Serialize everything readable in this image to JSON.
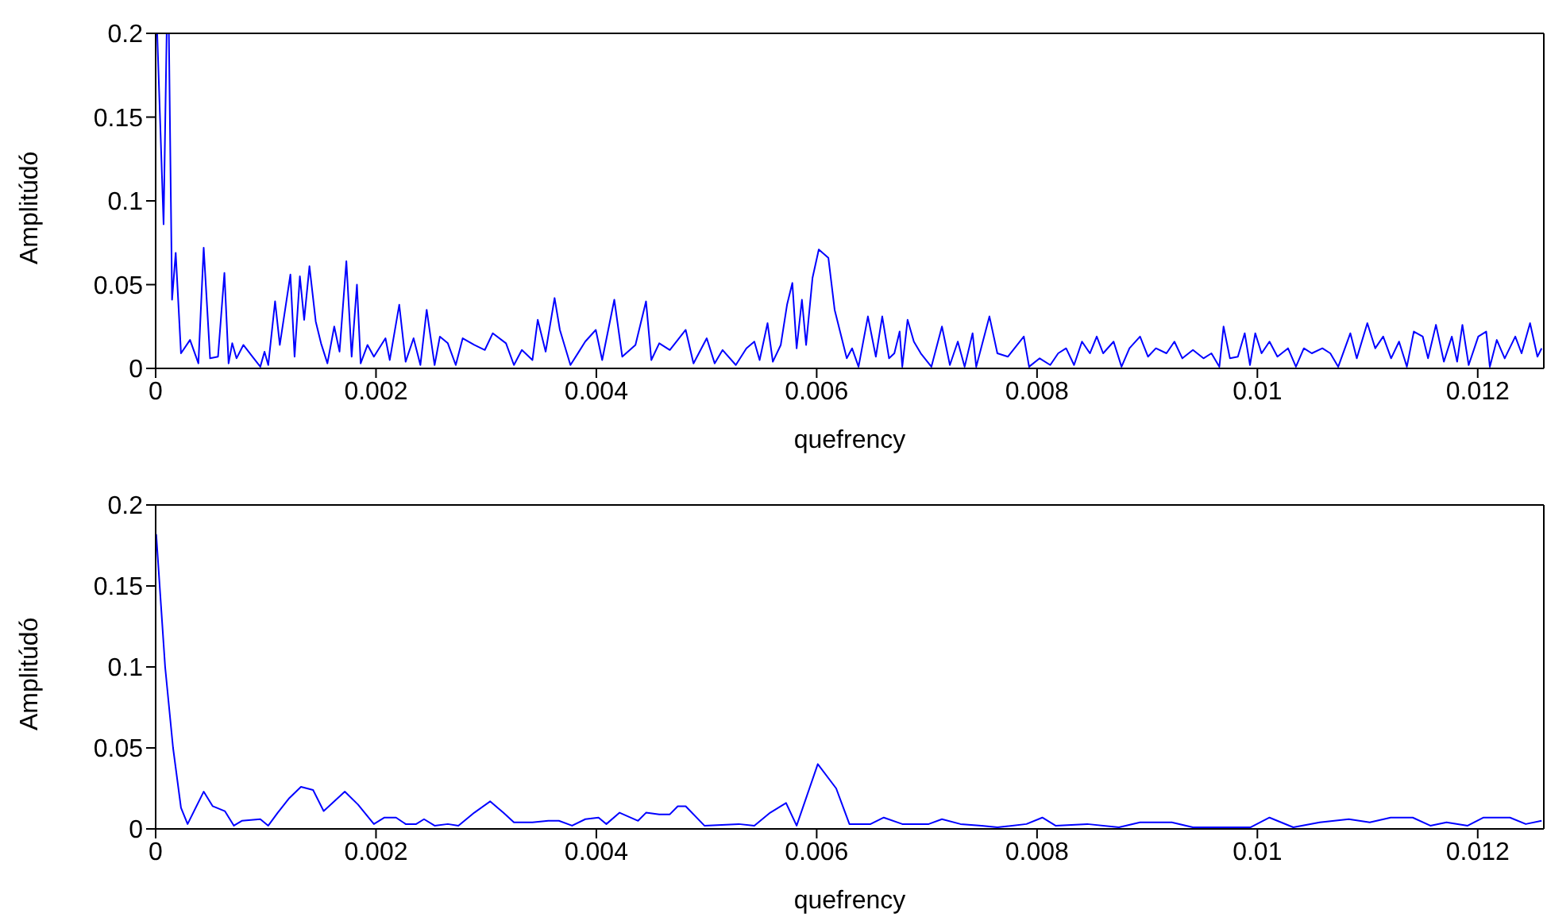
{
  "chart_data": [
    {
      "type": "line",
      "xlabel": "quefrency",
      "ylabel": "Amplitúdó",
      "xlim": [
        0,
        0.0126
      ],
      "xticks": [
        0,
        0.002,
        0.004,
        0.006,
        0.008,
        0.01,
        0.012
      ],
      "ylim": [
        0,
        0.2
      ],
      "yticks": [
        0,
        0.05,
        0.1,
        0.15,
        0.2
      ],
      "series": [
        {
          "color": "#0000ff",
          "x": [
            1.4e-05,
            7.2e-05,
            0.0001,
            0.00012,
            0.000149,
            0.000182,
            0.00023,
            0.000312,
            0.000388,
            0.000436,
            0.000494,
            0.000566,
            0.000624,
            0.000662,
            0.000695,
            0.000734,
            0.000796,
            0.000878,
            0.00095,
            0.000988,
            0.001022,
            0.001084,
            0.001127,
            0.001223,
            0.001261,
            0.001309,
            0.001348,
            0.001396,
            0.001453,
            0.001501,
            0.001559,
            0.001621,
            0.001669,
            0.001731,
            0.001779,
            0.001827,
            0.001861,
            0.001923,
            0.001981,
            0.002086,
            0.002125,
            0.002211,
            0.002269,
            0.002341,
            0.002403,
            0.00246,
            0.002532,
            0.00258,
            0.002652,
            0.002724,
            0.002787,
            0.002892,
            0.002988,
            0.00306,
            0.00318,
            0.003252,
            0.003324,
            0.00342,
            0.003468,
            0.00354,
            0.003621,
            0.003669,
            0.003765,
            0.003842,
            0.003899,
            0.003995,
            0.004053,
            0.004163,
            0.004235,
            0.004355,
            0.004451,
            0.004499,
            0.004571,
            0.004667,
            0.004811,
            0.004882,
            0.005002,
            0.005074,
            0.005146,
            0.005266,
            0.005362,
            0.005434,
            0.005482,
            0.005554,
            0.005602,
            0.005674,
            0.005731,
            0.005779,
            0.005818,
            0.005866,
            0.005904,
            0.005962,
            0.006019,
            0.006106,
            0.006163,
            0.006273,
            0.006321,
            0.00638,
            0.006465,
            0.006537,
            0.006595,
            0.006657,
            0.006705,
            0.006753,
            0.006777,
            0.006825,
            0.006882,
            0.006945,
            0.007041,
            0.007137,
            0.007209,
            0.007281,
            0.007343,
            0.007415,
            0.007448,
            0.007568,
            0.00764,
            0.007736,
            0.00788,
            0.007928,
            0.008024,
            0.00812,
            0.008192,
            0.008264,
            0.008336,
            0.008408,
            0.00848,
            0.008542,
            0.0086,
            0.008695,
            0.008767,
            0.008839,
            0.008935,
            0.009007,
            0.009079,
            0.009175,
            0.009247,
            0.009319,
            0.009415,
            0.009511,
            0.009583,
            0.009655,
            0.009693,
            0.009751,
            0.009823,
            0.009885,
            0.009933,
            0.009981,
            0.010038,
            0.01011,
            0.010182,
            0.010278,
            0.01035,
            0.010422,
            0.010494,
            0.01059,
            0.010662,
            0.010734,
            0.010844,
            0.010902,
            0.010998,
            0.01107,
            0.011142,
            0.011214,
            0.011286,
            0.011357,
            0.01142,
            0.011501,
            0.011549,
            0.011621,
            0.011693,
            0.011765,
            0.011813,
            0.011861,
            0.011918,
            0.012005,
            0.012077,
            0.01211,
            0.012173,
            0.012245,
            0.012341,
            0.012398,
            0.012475,
            0.012542,
            0.01258
          ],
          "values": [
            0.2,
            0.086,
            0.2,
            0.2,
            0.041,
            0.069,
            0.009,
            0.017,
            0.003,
            0.072,
            0.006,
            0.007,
            0.057,
            0.003,
            0.015,
            0.006,
            0.014,
            0.007,
            0.001,
            0.01,
            0.002,
            0.04,
            0.014,
            0.056,
            0.007,
            0.055,
            0.029,
            0.061,
            0.028,
            0.015,
            0.003,
            0.025,
            0.01,
            0.064,
            0.007,
            0.05,
            0.003,
            0.014,
            0.007,
            0.018,
            0.005,
            0.038,
            0.004,
            0.018,
            0.002,
            0.035,
            0.002,
            0.019,
            0.015,
            0.002,
            0.018,
            0.014,
            0.011,
            0.021,
            0.015,
            0.002,
            0.011,
            0.005,
            0.029,
            0.01,
            0.042,
            0.023,
            0.002,
            0.01,
            0.016,
            0.023,
            0.005,
            0.041,
            0.007,
            0.014,
            0.04,
            0.005,
            0.015,
            0.011,
            0.023,
            0.003,
            0.018,
            0.003,
            0.011,
            0.002,
            0.012,
            0.016,
            0.005,
            0.027,
            0.004,
            0.014,
            0.038,
            0.051,
            0.012,
            0.041,
            0.014,
            0.054,
            0.071,
            0.066,
            0.035,
            0.006,
            0.012,
            0.001,
            0.031,
            0.007,
            0.031,
            0.006,
            0.009,
            0.022,
            0.001,
            0.029,
            0.016,
            0.009,
            0.001,
            0.025,
            0.002,
            0.016,
            0.001,
            0.021,
            0.001,
            0.031,
            0.009,
            0.007,
            0.019,
            0.001,
            0.006,
            0.002,
            0.009,
            0.012,
            0.002,
            0.016,
            0.009,
            0.019,
            0.009,
            0.016,
            0.001,
            0.012,
            0.019,
            0.007,
            0.012,
            0.009,
            0.016,
            0.006,
            0.011,
            0.006,
            0.009,
            0.001,
            0.025,
            0.006,
            0.007,
            0.021,
            0.002,
            0.021,
            0.009,
            0.016,
            0.007,
            0.012,
            0.001,
            0.012,
            0.009,
            0.012,
            0.009,
            0.001,
            0.021,
            0.006,
            0.027,
            0.012,
            0.019,
            0.006,
            0.016,
            0.001,
            0.022,
            0.019,
            0.006,
            0.026,
            0.004,
            0.019,
            0.004,
            0.026,
            0.002,
            0.019,
            0.022,
            0.001,
            0.017,
            0.006,
            0.019,
            0.009,
            0.027,
            0.007,
            0.012
          ]
        }
      ]
    },
    {
      "type": "line",
      "xlabel": "quefrency",
      "ylabel": "Amplitúdó",
      "xlim": [
        0,
        0.0126
      ],
      "xticks": [
        0,
        0.002,
        0.004,
        0.006,
        0.008,
        0.01,
        0.012
      ],
      "ylim": [
        0,
        0.2
      ],
      "yticks": [
        0,
        0.05,
        0.1,
        0.15,
        0.2
      ],
      "series": [
        {
          "color": "#0000ff",
          "x": [
            5e-06,
            8.6e-05,
            0.000158,
            0.00023,
            0.00029,
            0.000436,
            0.000518,
            0.000628,
            0.00071,
            0.000782,
            0.00095,
            0.001022,
            0.001108,
            0.001213,
            0.001319,
            0.001429,
            0.001525,
            0.001717,
            0.001837,
            0.001981,
            0.002077,
            0.002182,
            0.002269,
            0.002365,
            0.002436,
            0.002532,
            0.002652,
            0.002748,
            0.002892,
            0.003036,
            0.003156,
            0.003252,
            0.00342,
            0.003564,
            0.00366,
            0.00378,
            0.0039,
            0.00402,
            0.004091,
            0.004211,
            0.004379,
            0.004451,
            0.004571,
            0.004667,
            0.004739,
            0.004811,
            0.004981,
            0.005293,
            0.005434,
            0.005578,
            0.005722,
            0.005818,
            0.00601,
            0.006177,
            0.006297,
            0.006489,
            0.006609,
            0.006777,
            0.007017,
            0.007137,
            0.007305,
            0.007496,
            0.00764,
            0.007904,
            0.008048,
            0.008168,
            0.008456,
            0.008743,
            0.008935,
            0.009223,
            0.009415,
            0.009655,
            0.00994,
            0.01011,
            0.010326,
            0.010566,
            0.01083,
            0.01102,
            0.01121,
            0.01141,
            0.01157,
            0.011717,
            0.011909,
            0.012053,
            0.012293,
            0.012436,
            0.01258
          ],
          "values": [
            0.182,
            0.1,
            0.05,
            0.013,
            0.003,
            0.023,
            0.014,
            0.011,
            0.002,
            0.005,
            0.006,
            0.002,
            0.01,
            0.019,
            0.026,
            0.024,
            0.011,
            0.023,
            0.015,
            0.003,
            0.007,
            0.007,
            0.003,
            0.003,
            0.006,
            0.002,
            0.003,
            0.002,
            0.01,
            0.017,
            0.01,
            0.004,
            0.004,
            0.005,
            0.005,
            0.002,
            0.006,
            0.007,
            0.003,
            0.01,
            0.005,
            0.01,
            0.009,
            0.009,
            0.014,
            0.014,
            0.002,
            0.003,
            0.002,
            0.01,
            0.016,
            0.002,
            0.04,
            0.025,
            0.003,
            0.003,
            0.007,
            0.003,
            0.003,
            0.006,
            0.003,
            0.002,
            0.001,
            0.003,
            0.007,
            0.002,
            0.003,
            0.001,
            0.004,
            0.004,
            0.001,
            0.001,
            0.001,
            0.007,
            0.001,
            0.004,
            0.006,
            0.004,
            0.007,
            0.007,
            0.002,
            0.004,
            0.002,
            0.007,
            0.007,
            0.003,
            0.005
          ]
        }
      ]
    }
  ]
}
